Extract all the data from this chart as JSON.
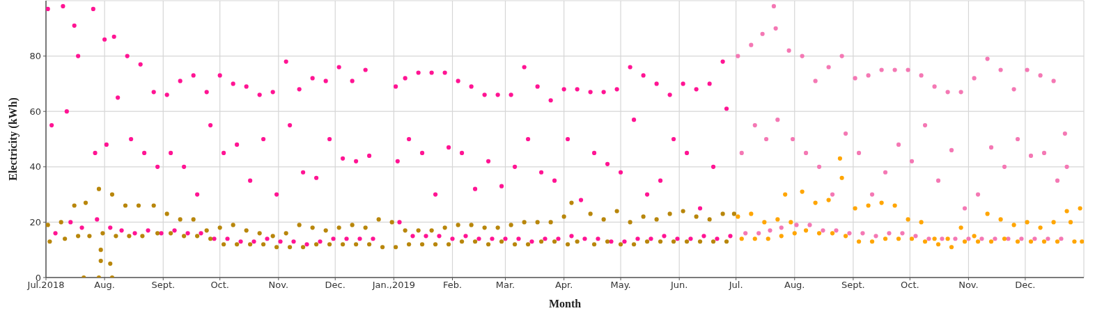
{
  "chart_data": {
    "type": "scatter",
    "xlabel": "Month",
    "ylabel": "Electricity (kWh)",
    "xlim": [
      "2018-07-01",
      "2020-01-01"
    ],
    "ylim": [
      0,
      100
    ],
    "xticks": [
      {
        "value": "2018-07-01",
        "label": "Jul.2018"
      },
      {
        "value": "2018-08-01",
        "label": "Aug."
      },
      {
        "value": "2018-09-01",
        "label": "Sept."
      },
      {
        "value": "2018-10-01",
        "label": "Oct."
      },
      {
        "value": "2018-11-01",
        "label": "Nov."
      },
      {
        "value": "2018-12-01",
        "label": "Dec."
      },
      {
        "value": "2019-01-01",
        "label": "Jan.,2019"
      },
      {
        "value": "2019-02-01",
        "label": "Feb."
      },
      {
        "value": "2019-03-01",
        "label": "Mar."
      },
      {
        "value": "2019-04-01",
        "label": "Apr."
      },
      {
        "value": "2019-05-01",
        "label": "May."
      },
      {
        "value": "2019-06-01",
        "label": "Jun."
      },
      {
        "value": "2019-07-01",
        "label": "Jul."
      },
      {
        "value": "2019-08-01",
        "label": "Aug."
      },
      {
        "value": "2019-09-01",
        "label": "Sept."
      },
      {
        "value": "2019-10-01",
        "label": "Oct."
      },
      {
        "value": "2019-11-01",
        "label": "Nov."
      },
      {
        "value": "2019-12-01",
        "label": "Dec."
      }
    ],
    "yticks": [
      0,
      20,
      40,
      60,
      80
    ],
    "grid": true,
    "marker": "circle",
    "series": [
      {
        "color": "#ff1493",
        "x": [
          "2018-07-02",
          "2018-07-04",
          "2018-07-06",
          "2018-07-10",
          "2018-07-12",
          "2018-07-14",
          "2018-07-16",
          "2018-07-18",
          "2018-07-20",
          "2018-07-26",
          "2018-07-27",
          "2018-07-28",
          "2018-08-01",
          "2018-08-02",
          "2018-08-04",
          "2018-08-06",
          "2018-08-08",
          "2018-08-10",
          "2018-08-13",
          "2018-08-15",
          "2018-08-17",
          "2018-08-20",
          "2018-08-22",
          "2018-08-24",
          "2018-08-27",
          "2018-08-29",
          "2018-08-31",
          "2018-09-03",
          "2018-09-05",
          "2018-09-07",
          "2018-09-10",
          "2018-09-12",
          "2018-09-14",
          "2018-09-17",
          "2018-09-19",
          "2018-09-21",
          "2018-09-24",
          "2018-09-26",
          "2018-09-28",
          "2018-10-01",
          "2018-10-03",
          "2018-10-05",
          "2018-10-08",
          "2018-10-10",
          "2018-10-12",
          "2018-10-15",
          "2018-10-17",
          "2018-10-19",
          "2018-10-22",
          "2018-10-24",
          "2018-10-26",
          "2018-10-29",
          "2018-10-31",
          "2018-11-02",
          "2018-11-05",
          "2018-11-07",
          "2018-11-09",
          "2018-11-12",
          "2018-11-14",
          "2018-11-16",
          "2018-11-19",
          "2018-11-21",
          "2018-11-23",
          "2018-11-26",
          "2018-11-28",
          "2018-11-30",
          "2018-12-03",
          "2018-12-05",
          "2018-12-07",
          "2018-12-10",
          "2018-12-12",
          "2018-12-14",
          "2018-12-17",
          "2018-12-19",
          "2018-12-21",
          "2019-01-02",
          "2019-01-03",
          "2019-01-04",
          "2019-01-07",
          "2019-01-09",
          "2019-01-11",
          "2019-01-14",
          "2019-01-16",
          "2019-01-18",
          "2019-01-21",
          "2019-01-23",
          "2019-01-25",
          "2019-01-28",
          "2019-01-30",
          "2019-02-01",
          "2019-02-04",
          "2019-02-06",
          "2019-02-08",
          "2019-02-11",
          "2019-02-13",
          "2019-02-15",
          "2019-02-18",
          "2019-02-20",
          "2019-02-22",
          "2019-02-25",
          "2019-02-27",
          "2019-03-01",
          "2019-03-04",
          "2019-03-06",
          "2019-03-08",
          "2019-03-11",
          "2019-03-13",
          "2019-03-15",
          "2019-03-18",
          "2019-03-20",
          "2019-03-22",
          "2019-03-25",
          "2019-03-27",
          "2019-03-29",
          "2019-04-01",
          "2019-04-03",
          "2019-04-05",
          "2019-04-08",
          "2019-04-10",
          "2019-04-12",
          "2019-04-15",
          "2019-04-17",
          "2019-04-19",
          "2019-04-22",
          "2019-04-24",
          "2019-04-26",
          "2019-04-29",
          "2019-05-01",
          "2019-05-03",
          "2019-05-06",
          "2019-05-08",
          "2019-05-10",
          "2019-05-13",
          "2019-05-15",
          "2019-05-17",
          "2019-05-20",
          "2019-05-22",
          "2019-05-24",
          "2019-05-27",
          "2019-05-29",
          "2019-05-31",
          "2019-06-03",
          "2019-06-05",
          "2019-06-07",
          "2019-06-10",
          "2019-06-12",
          "2019-06-14",
          "2019-06-17",
          "2019-06-19",
          "2019-06-21",
          "2019-06-24",
          "2019-06-26",
          "2019-06-28"
        ],
        "values": [
          97,
          55,
          16,
          98,
          60,
          20,
          91,
          80,
          18,
          97,
          45,
          21,
          86,
          48,
          18,
          87,
          65,
          17,
          80,
          50,
          16,
          77,
          45,
          17,
          67,
          40,
          16,
          66,
          45,
          17,
          71,
          40,
          16,
          73,
          30,
          16,
          67,
          55,
          14,
          73,
          45,
          14,
          70,
          48,
          13,
          69,
          35,
          13,
          66,
          50,
          14,
          67,
          30,
          13,
          78,
          55,
          13,
          68,
          38,
          12,
          72,
          36,
          13,
          71,
          50,
          14,
          76,
          43,
          14,
          71,
          42,
          14,
          75,
          44,
          14,
          69,
          42,
          20,
          72,
          50,
          15,
          74,
          45,
          15,
          74,
          30,
          15,
          74,
          47,
          14,
          71,
          45,
          15,
          69,
          32,
          14,
          66,
          42,
          14,
          66,
          33,
          14,
          66,
          40,
          14,
          76,
          50,
          13,
          69,
          38,
          14,
          64,
          35,
          14,
          68,
          50,
          15,
          68,
          28,
          14,
          67,
          45,
          14,
          67,
          41,
          13,
          68,
          38,
          13,
          76,
          57,
          14,
          73,
          30,
          14,
          70,
          35,
          15,
          66,
          50,
          14,
          70,
          45,
          14,
          68,
          25,
          15,
          70,
          40,
          14,
          78,
          61,
          15
        ]
      },
      {
        "color": "#f478b4",
        "x": [
          "2019-07-02",
          "2019-07-04",
          "2019-07-06",
          "2019-07-09",
          "2019-07-11",
          "2019-07-13",
          "2019-07-15",
          "2019-07-17",
          "2019-07-19",
          "2019-07-21",
          "2019-07-22",
          "2019-07-23",
          "2019-07-25",
          "2019-07-29",
          "2019-07-31",
          "2019-08-02",
          "2019-08-05",
          "2019-08-07",
          "2019-08-09",
          "2019-08-12",
          "2019-08-14",
          "2019-08-16",
          "2019-08-19",
          "2019-08-21",
          "2019-08-23",
          "2019-08-26",
          "2019-08-28",
          "2019-08-30",
          "2019-09-02",
          "2019-09-04",
          "2019-09-06",
          "2019-09-09",
          "2019-09-11",
          "2019-09-13",
          "2019-09-16",
          "2019-09-18",
          "2019-09-20",
          "2019-09-23",
          "2019-09-25",
          "2019-09-27",
          "2019-09-30",
          "2019-10-02",
          "2019-10-04",
          "2019-10-07",
          "2019-10-09",
          "2019-10-11",
          "2019-10-14",
          "2019-10-16",
          "2019-10-18",
          "2019-10-21",
          "2019-10-23",
          "2019-10-25",
          "2019-10-28",
          "2019-10-30",
          "2019-11-01",
          "2019-11-04",
          "2019-11-06",
          "2019-11-08",
          "2019-11-11",
          "2019-11-13",
          "2019-11-15",
          "2019-11-18",
          "2019-11-20",
          "2019-11-22",
          "2019-11-25",
          "2019-11-27",
          "2019-11-29",
          "2019-12-02",
          "2019-12-04",
          "2019-12-06",
          "2019-12-09",
          "2019-12-11",
          "2019-12-13",
          "2019-12-16",
          "2019-12-18",
          "2019-12-20",
          "2019-12-22",
          "2019-12-23"
        ],
        "values": [
          80,
          45,
          16,
          84,
          55,
          16,
          88,
          50,
          17,
          98,
          90,
          57,
          18,
          82,
          50,
          19,
          80,
          45,
          19,
          71,
          40,
          17,
          76,
          30,
          17,
          80,
          52,
          16,
          72,
          45,
          16,
          73,
          30,
          15,
          75,
          38,
          16,
          75,
          48,
          16,
          75,
          42,
          15,
          73,
          55,
          14,
          69,
          35,
          14,
          67,
          46,
          14,
          67,
          25,
          14,
          72,
          30,
          14,
          79,
          47,
          14,
          75,
          40,
          14,
          68,
          50,
          14,
          75,
          44,
          14,
          73,
          45,
          14,
          71,
          35,
          14,
          52,
          40
        ]
      },
      {
        "color": "#b8860b",
        "x": [
          "2018-07-02",
          "2018-07-03",
          "2018-07-09",
          "2018-07-11",
          "2018-07-16",
          "2018-07-18",
          "2018-07-21",
          "2018-07-22",
          "2018-07-24",
          "2018-07-29",
          "2018-07-29",
          "2018-07-30",
          "2018-07-30",
          "2018-07-31",
          "2018-08-04",
          "2018-08-05",
          "2018-08-05",
          "2018-08-07",
          "2018-08-12",
          "2018-08-14",
          "2018-08-19",
          "2018-08-21",
          "2018-08-27",
          "2018-08-29",
          "2018-09-03",
          "2018-09-05",
          "2018-09-10",
          "2018-09-12",
          "2018-09-17",
          "2018-09-19",
          "2018-09-24",
          "2018-09-26",
          "2018-10-01",
          "2018-10-03",
          "2018-10-08",
          "2018-10-10",
          "2018-10-15",
          "2018-10-17",
          "2018-10-22",
          "2018-10-24",
          "2018-10-29",
          "2018-10-31",
          "2018-11-05",
          "2018-11-07",
          "2018-11-12",
          "2018-11-14",
          "2018-11-19",
          "2018-11-21",
          "2018-11-26",
          "2018-11-28",
          "2018-12-03",
          "2018-12-05",
          "2018-12-10",
          "2018-12-12",
          "2018-12-17",
          "2018-12-19",
          "2018-12-24",
          "2018-12-26",
          "2018-12-31",
          "2019-01-02",
          "2019-01-07",
          "2019-01-09",
          "2019-01-14",
          "2019-01-16",
          "2019-01-21",
          "2019-01-23",
          "2019-01-28",
          "2019-01-30",
          "2019-02-04",
          "2019-02-06",
          "2019-02-11",
          "2019-02-13",
          "2019-02-18",
          "2019-02-20",
          "2019-02-25",
          "2019-02-27",
          "2019-03-04",
          "2019-03-06",
          "2019-03-11",
          "2019-03-13",
          "2019-03-18",
          "2019-03-20",
          "2019-03-25",
          "2019-03-27",
          "2019-04-01",
          "2019-04-03",
          "2019-04-05",
          "2019-04-08",
          "2019-04-15",
          "2019-04-17",
          "2019-04-22",
          "2019-04-24",
          "2019-04-29",
          "2019-05-01",
          "2019-05-06",
          "2019-05-08",
          "2019-05-13",
          "2019-05-15",
          "2019-05-20",
          "2019-05-22",
          "2019-05-27",
          "2019-05-29",
          "2019-06-03",
          "2019-06-05",
          "2019-06-10",
          "2019-06-12",
          "2019-06-17",
          "2019-06-19",
          "2019-06-24",
          "2019-06-26",
          "2019-06-30"
        ],
        "values": [
          19,
          13,
          20,
          14,
          26,
          15,
          0,
          27,
          15,
          32,
          0,
          6,
          10,
          16,
          5,
          0,
          30,
          15,
          26,
          15,
          26,
          15,
          26,
          16,
          23,
          16,
          21,
          15,
          21,
          15,
          17,
          14,
          18,
          12,
          19,
          12,
          17,
          12,
          16,
          12,
          15,
          11,
          16,
          11,
          19,
          11,
          18,
          12,
          17,
          12,
          18,
          12,
          19,
          12,
          18,
          12,
          21,
          11,
          20,
          11,
          17,
          12,
          17,
          12,
          17,
          12,
          18,
          12,
          19,
          13,
          19,
          13,
          18,
          12,
          18,
          13,
          19,
          12,
          20,
          12,
          20,
          13,
          20,
          13,
          22,
          12,
          27,
          13,
          23,
          12,
          21,
          13,
          24,
          12,
          20,
          12,
          22,
          13,
          21,
          13,
          23,
          13,
          24,
          13,
          22,
          13,
          21,
          13,
          23,
          13,
          23
        ]
      },
      {
        "color": "#ffa500",
        "x": [
          "2019-07-02",
          "2019-07-04",
          "2019-07-09",
          "2019-07-11",
          "2019-07-16",
          "2019-07-18",
          "2019-07-23",
          "2019-07-25",
          "2019-07-27",
          "2019-07-30",
          "2019-08-01",
          "2019-08-05",
          "2019-08-07",
          "2019-08-12",
          "2019-08-14",
          "2019-08-19",
          "2019-08-21",
          "2019-08-25",
          "2019-08-26",
          "2019-08-28",
          "2019-09-02",
          "2019-09-04",
          "2019-09-09",
          "2019-09-11",
          "2019-09-16",
          "2019-09-18",
          "2019-09-23",
          "2019-09-25",
          "2019-09-30",
          "2019-10-02",
          "2019-10-07",
          "2019-10-09",
          "2019-10-14",
          "2019-10-16",
          "2019-10-21",
          "2019-10-23",
          "2019-10-28",
          "2019-10-30",
          "2019-11-04",
          "2019-11-06",
          "2019-11-11",
          "2019-11-13",
          "2019-11-18",
          "2019-11-20",
          "2019-11-25",
          "2019-11-27",
          "2019-12-02",
          "2019-12-04",
          "2019-12-09",
          "2019-12-11",
          "2019-12-16",
          "2019-12-18",
          "2019-12-23",
          "2019-12-25",
          "2019-12-27",
          "2019-12-30",
          "2019-12-31"
        ],
        "values": [
          22,
          14,
          23,
          14,
          20,
          14,
          21,
          15,
          30,
          20,
          16,
          31,
          17,
          27,
          16,
          28,
          16,
          43,
          36,
          15,
          25,
          13,
          26,
          13,
          27,
          14,
          26,
          14,
          21,
          14,
          20,
          13,
          14,
          12,
          14,
          11,
          18,
          13,
          15,
          13,
          23,
          13,
          21,
          14,
          19,
          13,
          20,
          13,
          18,
          13,
          20,
          13,
          24,
          20,
          13,
          25,
          13
        ]
      }
    ]
  }
}
